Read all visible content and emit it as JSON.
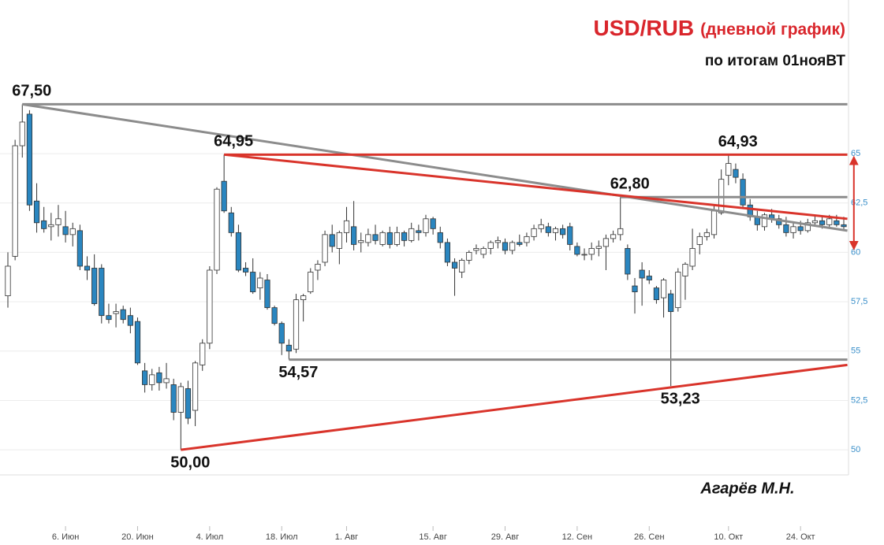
{
  "chart_data": {
    "type": "candlestick",
    "title": "USD/RUB",
    "title_note": "(дневной график)",
    "subtitle": "по итогам 01нояВТ",
    "author": "Агарёв М.Н.",
    "title_color": "#d9262c",
    "up_color": "#ffffff",
    "down_color": "#2a86c0",
    "grid": true,
    "ylim": [
      48.73,
      72.78
    ],
    "yticks": [
      50,
      {
        "value": 52.5,
        "label": "52,5"
      },
      55,
      {
        "value": 57.5,
        "label": "57,5"
      },
      60,
      {
        "value": 62.5,
        "label": "62,5"
      },
      65
    ],
    "categories": [
      null,
      null,
      null,
      null,
      null,
      null,
      null,
      null,
      "6. Июн",
      null,
      null,
      null,
      null,
      null,
      null,
      null,
      null,
      null,
      "20. Июн",
      null,
      null,
      null,
      null,
      null,
      null,
      null,
      null,
      null,
      "4. Июл",
      null,
      null,
      null,
      null,
      null,
      null,
      null,
      null,
      null,
      "18. Июл",
      null,
      null,
      null,
      null,
      null,
      null,
      null,
      null,
      "1. Авг",
      null,
      null,
      null,
      null,
      null,
      null,
      null,
      null,
      null,
      null,
      null,
      "15. Авг",
      null,
      null,
      null,
      null,
      null,
      null,
      null,
      null,
      null,
      "29. Авг",
      null,
      null,
      null,
      null,
      null,
      null,
      null,
      null,
      null,
      "12. Сен",
      null,
      null,
      null,
      null,
      null,
      null,
      null,
      null,
      null,
      "26. Сен",
      null,
      null,
      null,
      null,
      null,
      null,
      null,
      null,
      null,
      null,
      "10. Окт",
      null,
      null,
      null,
      null,
      null,
      null,
      null,
      null,
      null,
      "24. Окт",
      null,
      null,
      null,
      null,
      null,
      null
    ],
    "ohlc": [
      [
        57.8,
        60.0,
        57.2,
        59.3
      ],
      [
        59.8,
        65.7,
        59.6,
        65.4
      ],
      [
        65.4,
        67.5,
        64.8,
        66.6
      ],
      [
        67.0,
        67.2,
        62.1,
        62.4
      ],
      [
        62.6,
        63.5,
        61.0,
        61.5
      ],
      [
        61.6,
        62.3,
        61.0,
        61.2
      ],
      [
        61.3,
        62.0,
        60.6,
        61.4
      ],
      [
        61.4,
        62.4,
        60.8,
        61.7
      ],
      [
        61.3,
        62.1,
        60.5,
        60.9
      ],
      [
        60.9,
        61.5,
        60.3,
        61.2
      ],
      [
        61.1,
        61.4,
        59.1,
        59.3
      ],
      [
        59.3,
        59.8,
        58.6,
        59.1
      ],
      [
        59.2,
        59.9,
        57.3,
        57.4
      ],
      [
        59.2,
        59.4,
        56.4,
        56.8
      ],
      [
        56.8,
        57.4,
        56.4,
        56.6
      ],
      [
        56.9,
        57.4,
        56.2,
        57.0
      ],
      [
        57.1,
        57.3,
        56.4,
        56.6
      ],
      [
        56.8,
        57.2,
        55.9,
        56.3
      ],
      [
        56.5,
        56.7,
        54.3,
        54.4
      ],
      [
        54.0,
        54.4,
        52.9,
        53.3
      ],
      [
        53.3,
        54.1,
        53.0,
        53.8
      ],
      [
        53.9,
        54.2,
        53.0,
        53.4
      ],
      [
        53.4,
        54.4,
        53.1,
        53.6
      ],
      [
        53.3,
        53.6,
        51.5,
        51.9
      ],
      [
        51.9,
        53.4,
        50.0,
        53.2
      ],
      [
        53.1,
        53.5,
        51.3,
        51.6
      ],
      [
        52.0,
        54.5,
        51.2,
        54.4
      ],
      [
        54.3,
        55.6,
        54.0,
        55.4
      ],
      [
        55.4,
        59.3,
        55.1,
        59.1
      ],
      [
        59.1,
        63.3,
        58.9,
        63.2
      ],
      [
        63.6,
        64.95,
        62.0,
        62.1
      ],
      [
        62.0,
        62.3,
        60.8,
        61.0
      ],
      [
        61.0,
        61.4,
        59.0,
        59.1
      ],
      [
        59.2,
        59.5,
        58.8,
        59.0
      ],
      [
        59.0,
        59.7,
        57.9,
        58.0
      ],
      [
        58.2,
        59.0,
        57.6,
        58.7
      ],
      [
        58.6,
        58.9,
        57.1,
        57.2
      ],
      [
        57.2,
        57.3,
        56.3,
        56.4
      ],
      [
        56.4,
        56.5,
        54.8,
        55.4
      ],
      [
        55.3,
        55.6,
        54.57,
        55.0
      ],
      [
        55.1,
        57.9,
        54.9,
        57.6
      ],
      [
        57.6,
        57.9,
        56.5,
        57.8
      ],
      [
        58.0,
        59.2,
        57.9,
        59.0
      ],
      [
        59.1,
        59.6,
        58.6,
        59.4
      ],
      [
        59.5,
        61.1,
        59.3,
        60.9
      ],
      [
        60.9,
        61.4,
        60.0,
        60.3
      ],
      [
        60.2,
        61.1,
        59.4,
        61.0
      ],
      [
        61.0,
        62.3,
        60.5,
        61.6
      ],
      [
        61.3,
        62.6,
        60.1,
        60.4
      ],
      [
        60.5,
        61.0,
        60.0,
        60.6
      ],
      [
        60.5,
        61.2,
        60.3,
        60.9
      ],
      [
        60.9,
        61.4,
        60.4,
        60.6
      ],
      [
        60.4,
        61.1,
        60.3,
        61.0
      ],
      [
        61.0,
        61.3,
        60.2,
        60.4
      ],
      [
        60.4,
        61.3,
        60.3,
        61.0
      ],
      [
        61.0,
        61.1,
        60.3,
        60.6
      ],
      [
        60.6,
        61.5,
        60.5,
        61.2
      ],
      [
        61.1,
        61.4,
        60.6,
        61.0
      ],
      [
        61.0,
        61.9,
        60.8,
        61.7
      ],
      [
        61.7,
        61.8,
        60.9,
        61.2
      ],
      [
        61.0,
        61.3,
        60.2,
        60.5
      ],
      [
        60.5,
        60.7,
        59.3,
        59.5
      ],
      [
        59.5,
        59.7,
        57.8,
        59.2
      ],
      [
        59.0,
        59.7,
        58.7,
        59.6
      ],
      [
        59.6,
        60.1,
        59.4,
        60.0
      ],
      [
        60.1,
        60.4,
        59.9,
        60.2
      ],
      [
        59.9,
        60.3,
        59.7,
        60.2
      ],
      [
        60.2,
        60.6,
        59.9,
        60.5
      ],
      [
        60.5,
        60.8,
        60.2,
        60.6
      ],
      [
        60.5,
        60.7,
        59.9,
        60.1
      ],
      [
        60.1,
        60.6,
        59.9,
        60.5
      ],
      [
        60.5,
        60.9,
        60.3,
        60.4
      ],
      [
        60.5,
        61.0,
        60.3,
        60.8
      ],
      [
        60.8,
        61.4,
        60.6,
        61.2
      ],
      [
        61.2,
        61.7,
        61.0,
        61.4
      ],
      [
        61.3,
        61.5,
        60.8,
        61.0
      ],
      [
        61.0,
        61.3,
        60.6,
        61.2
      ],
      [
        61.2,
        61.4,
        60.7,
        60.9
      ],
      [
        61.3,
        61.5,
        60.1,
        60.4
      ],
      [
        60.3,
        60.5,
        59.8,
        59.9
      ],
      [
        59.9,
        60.2,
        59.6,
        59.9
      ],
      [
        59.9,
        60.5,
        59.6,
        60.2
      ],
      [
        60.2,
        60.6,
        59.8,
        60.3
      ],
      [
        60.3,
        60.9,
        59.1,
        60.7
      ],
      [
        60.7,
        61.1,
        60.5,
        60.9
      ],
      [
        60.9,
        62.8,
        60.6,
        61.2
      ],
      [
        60.2,
        60.4,
        58.6,
        58.9
      ],
      [
        58.3,
        58.7,
        56.9,
        58.0
      ],
      [
        59.1,
        59.5,
        57.3,
        58.7
      ],
      [
        58.8,
        59.1,
        58.4,
        58.6
      ],
      [
        58.2,
        58.3,
        57.4,
        57.6
      ],
      [
        57.7,
        58.7,
        56.7,
        58.6
      ],
      [
        57.9,
        58.1,
        53.23,
        57.0
      ],
      [
        57.2,
        59.2,
        57.0,
        59.0
      ],
      [
        58.8,
        59.5,
        57.6,
        59.4
      ],
      [
        59.3,
        61.2,
        59.1,
        60.2
      ],
      [
        60.4,
        61.0,
        59.9,
        60.8
      ],
      [
        60.8,
        61.2,
        60.6,
        61.0
      ],
      [
        60.9,
        62.4,
        60.7,
        62.1
      ],
      [
        62.0,
        64.2,
        61.9,
        63.7
      ],
      [
        63.9,
        64.93,
        63.4,
        64.5
      ],
      [
        64.2,
        64.5,
        63.5,
        63.8
      ],
      [
        63.7,
        64.0,
        62.2,
        62.4
      ],
      [
        62.4,
        62.7,
        61.6,
        61.8
      ],
      [
        61.8,
        62.1,
        61.1,
        61.4
      ],
      [
        61.3,
        62.0,
        61.1,
        61.9
      ],
      [
        61.9,
        62.2,
        61.5,
        61.7
      ],
      [
        61.7,
        61.9,
        61.2,
        61.4
      ],
      [
        61.4,
        61.8,
        60.8,
        61.0
      ],
      [
        61.0,
        61.5,
        60.7,
        61.3
      ],
      [
        61.3,
        61.6,
        60.9,
        61.1
      ],
      [
        61.1,
        61.7,
        61.0,
        61.5
      ],
      [
        61.5,
        61.9,
        61.3,
        61.6
      ],
      [
        61.6,
        61.8,
        61.2,
        61.4
      ],
      [
        61.4,
        61.9,
        61.2,
        61.7
      ],
      [
        61.6,
        61.9,
        61.3,
        61.4
      ],
      [
        61.4,
        61.8,
        61.1,
        61.3
      ]
    ],
    "annotations": [
      {
        "text": "67,50",
        "index": 2,
        "value": 67.5,
        "anchor": "above"
      },
      {
        "text": "64,95",
        "index": 30,
        "value": 64.95,
        "anchor": "above"
      },
      {
        "text": "62,80",
        "index": 85,
        "value": 62.8,
        "anchor": "above"
      },
      {
        "text": "64,93",
        "index": 100,
        "value": 64.93,
        "anchor": "above"
      },
      {
        "text": "54,57",
        "index": 39,
        "value": 54.57,
        "anchor": "below"
      },
      {
        "text": "50,00",
        "index": 24,
        "value": 50.0,
        "anchor": "below"
      },
      {
        "text": "53,23",
        "index": 92,
        "value": 53.23,
        "anchor": "below"
      }
    ],
    "lines": [
      {
        "color": "#8c8c8c",
        "from": [
          2,
          67.5
        ],
        "to": [
          116.5,
          67.5
        ]
      },
      {
        "color": "#8c8c8c",
        "from": [
          2,
          67.5
        ],
        "to": [
          116.5,
          61.1
        ]
      },
      {
        "color": "#8c8c8c",
        "from": [
          85,
          62.8
        ],
        "to": [
          116.5,
          62.8
        ]
      },
      {
        "color": "#8c8c8c",
        "from": [
          39,
          54.57
        ],
        "to": [
          116.5,
          54.57
        ]
      },
      {
        "color": "#d9342b",
        "from": [
          30,
          64.95
        ],
        "to": [
          116.5,
          64.95
        ]
      },
      {
        "color": "#d9342b",
        "from": [
          30,
          64.95
        ],
        "to": [
          116.5,
          61.7
        ]
      },
      {
        "color": "#d9342b",
        "from": [
          24,
          50.0
        ],
        "to": [
          116.5,
          54.3
        ]
      },
      {
        "color": "#d9342b",
        "from": [
          117.4,
          64.8
        ],
        "to": [
          117.4,
          60.2
        ],
        "arrow": true
      }
    ]
  }
}
